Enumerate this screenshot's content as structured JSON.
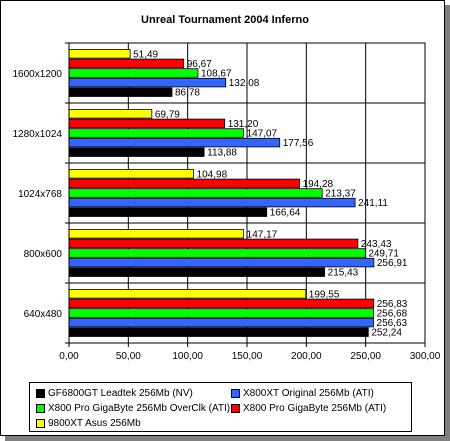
{
  "chart_data": {
    "type": "bar",
    "orientation": "horizontal",
    "title": "Unreal Tournament 2004 Inferno",
    "xlabel": "",
    "ylabel": "",
    "xlim": [
      0,
      300
    ],
    "x_ticks": [
      "0,00",
      "50,00",
      "100,00",
      "150,00",
      "200,00",
      "250,00",
      "300,00"
    ],
    "grid": "vertical",
    "legend_position": "bottom",
    "categories": [
      "1600x1200",
      "1280x1024",
      "1024x768",
      "800x600",
      "640x480"
    ],
    "series": [
      {
        "name": "9800XT Asus 256Mb",
        "color": "#ffff00",
        "values": [
          51.49,
          69.79,
          104.98,
          147.17,
          199.55
        ],
        "labels": [
          "51,49",
          "69,79",
          "104,98",
          "147,17",
          "199,55"
        ]
      },
      {
        "name": "X800 Pro GigaByte 256Mb (ATI)",
        "color": "#ff0000",
        "values": [
          96.67,
          131.2,
          194.28,
          243.43,
          256.83
        ],
        "labels": [
          "96,67",
          "131,20",
          "194,28",
          "243,43",
          "256,83"
        ]
      },
      {
        "name": "X800 Pro GigaByte 256Mb OverClk (ATI)",
        "color": "#00ff00",
        "values": [
          108.67,
          147.07,
          213.37,
          249.71,
          256.68
        ],
        "labels": [
          "108,67",
          "147,07",
          "213,37",
          "249,71",
          "256,68"
        ]
      },
      {
        "name": "X800XT Original 256Mb (ATI)",
        "color": "#3366ff",
        "values": [
          132.08,
          177.56,
          241.11,
          256.91,
          256.63
        ],
        "labels": [
          "132,08",
          "177,56",
          "241,11",
          "256,91",
          "256,63"
        ]
      },
      {
        "name": "GF6800GT Leadtek 256Mb (NV)",
        "color": "#000000",
        "values": [
          86.78,
          113.88,
          166.64,
          215.43,
          252.24
        ],
        "labels": [
          "86,78",
          "113,88",
          "166,64",
          "215,43",
          "252,24"
        ]
      }
    ],
    "legend": [
      {
        "series": 4,
        "label": "GF6800GT Leadtek 256Mb (NV)"
      },
      {
        "series": 3,
        "label": "X800XT Original 256Mb (ATI)"
      },
      {
        "series": 2,
        "label": "X800 Pro GigaByte 256Mb OverClk (ATI)"
      },
      {
        "series": 1,
        "label": "X800 Pro GigaByte 256Mb (ATI)"
      },
      {
        "series": 0,
        "label": "9800XT Asus 256Mb"
      }
    ]
  }
}
